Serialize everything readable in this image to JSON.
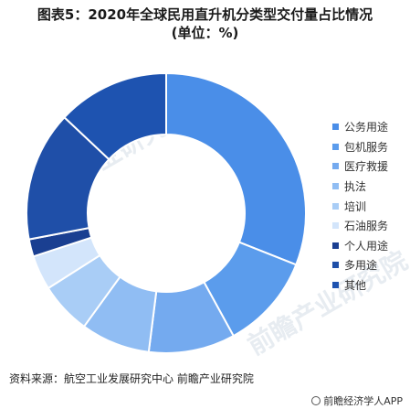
{
  "title": {
    "line1": "图表5：2020年全球民用直升机分类型交付量占比情况",
    "line2": "(单位：%)"
  },
  "chart_data": {
    "type": "pie",
    "donut": true,
    "categories": [
      "公务用途",
      "包机服务",
      "医疗救援",
      "执法",
      "培训",
      "石油服务",
      "个人用途",
      "多用途",
      "其他"
    ],
    "values": [
      31,
      11,
      10,
      8,
      6,
      4,
      2,
      15,
      13
    ],
    "colors": [
      "#4a8ee8",
      "#5b9cec",
      "#74aaef",
      "#90bdf3",
      "#a9cdf6",
      "#d3e5fb",
      "#1a3f91",
      "#1f4fa8",
      "#1e53b0"
    ],
    "legend_position": "right"
  },
  "source_text": "资料来源：航空工业发展研究中心 前瞻产业研究院",
  "brand_text": "前瞻经济学人APP",
  "watermark_text": "前瞻产业研究院"
}
